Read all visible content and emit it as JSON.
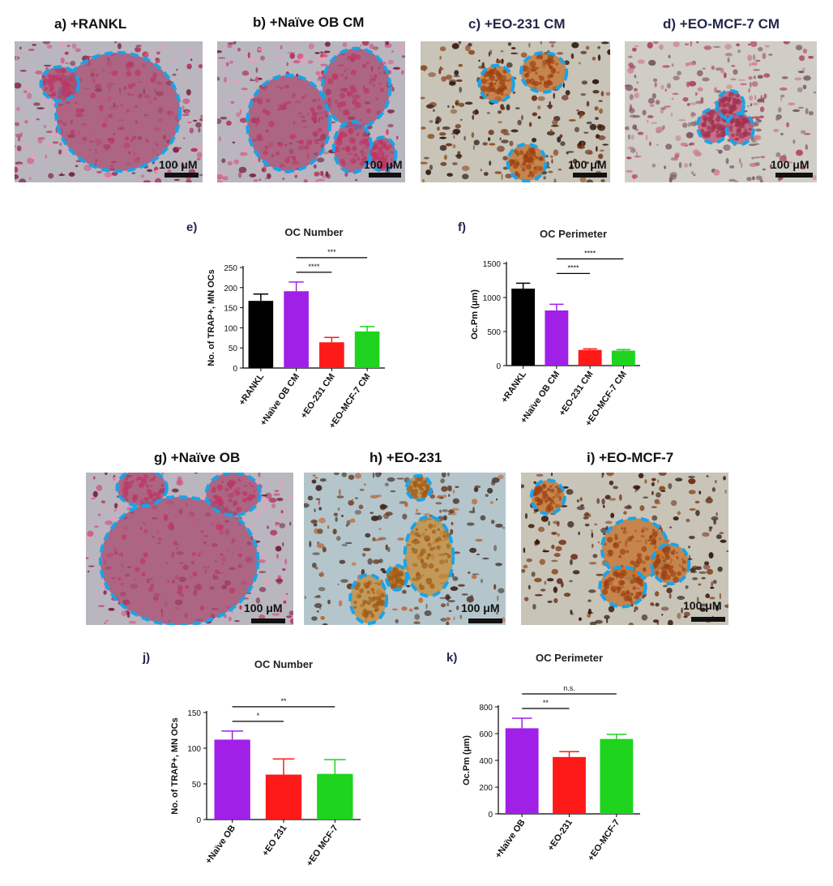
{
  "top_row": [
    {
      "label": "a) +RANKL",
      "scale": "100 μM",
      "tone": "pink"
    },
    {
      "label": "b) +Naïve OB CM",
      "scale": "100 μM",
      "tone": "pink"
    },
    {
      "label": "c) +EO-231 CM",
      "scale": "100 μM",
      "tone": "brown"
    },
    {
      "label": "d) +EO-MCF-7 CM",
      "scale": "100 μM",
      "tone": "grey"
    }
  ],
  "bottom_row": [
    {
      "label": "g) +Naïve OB",
      "scale": "100 μM",
      "tone": "pink"
    },
    {
      "label": "h) +EO-231",
      "scale": "100 μM",
      "tone": "blue"
    },
    {
      "label": "i) +EO-MCF-7",
      "scale": "100 μM",
      "tone": "brown"
    }
  ],
  "colors": {
    "black": "#000000",
    "purple": "#a020e8",
    "red": "#ff1a1a",
    "green": "#1ed41e",
    "outline": "#1aa3e8"
  },
  "chart_data": [
    {
      "panel": "e)",
      "type": "bar",
      "title": "OC Number",
      "ylabel": "No. of TRAP+, MN OCs",
      "categories": [
        "+RANKL",
        "+Naïve OB CM",
        "+EO-231 CM",
        "+EO-MCF-7 CM"
      ],
      "values": [
        167,
        191,
        64,
        91
      ],
      "errors": [
        17,
        23,
        12,
        12
      ],
      "bar_colors": [
        "#000000",
        "#a020e8",
        "#ff1a1a",
        "#1ed41e"
      ],
      "ylim": [
        0,
        250
      ],
      "yticks": [
        0,
        50,
        100,
        150,
        200,
        250
      ],
      "significance": [
        {
          "from": 1,
          "to": 2,
          "label": "****"
        },
        {
          "from": 1,
          "to": 3,
          "label": "***"
        }
      ]
    },
    {
      "panel": "f)",
      "type": "bar",
      "title": "OC Perimeter",
      "ylabel": "Oc.Pm (μm)",
      "categories": [
        "+RANKL",
        "+Naïve OB CM",
        "+EO-231 CM",
        "+EO-MCF-7 CM"
      ],
      "values": [
        1130,
        810,
        230,
        220
      ],
      "errors": [
        80,
        90,
        15,
        15
      ],
      "bar_colors": [
        "#000000",
        "#a020e8",
        "#ff1a1a",
        "#1ed41e"
      ],
      "ylim": [
        0,
        1500
      ],
      "yticks": [
        0,
        500,
        1000,
        1500
      ],
      "significance": [
        {
          "from": 1,
          "to": 2,
          "label": "****"
        },
        {
          "from": 1,
          "to": 3,
          "label": "****"
        }
      ]
    },
    {
      "panel": "j)",
      "type": "bar",
      "title": "OC Number",
      "ylabel": "No. of TRAP+, MN OCs",
      "categories": [
        "+Naïve OB",
        "+EO 231",
        "+EO MCF-7"
      ],
      "values": [
        112,
        63,
        64
      ],
      "errors": [
        12,
        22,
        20
      ],
      "bar_colors": [
        "#a020e8",
        "#ff1a1a",
        "#1ed41e"
      ],
      "ylim": [
        0,
        150
      ],
      "yticks": [
        0,
        50,
        100,
        150
      ],
      "significance": [
        {
          "from": 0,
          "to": 1,
          "label": "*"
        },
        {
          "from": 0,
          "to": 2,
          "label": "**"
        }
      ]
    },
    {
      "panel": "k)",
      "type": "bar",
      "title": "OC Perimeter",
      "ylabel": "Oc.Pm (μm)",
      "categories": [
        "+Naïve OB",
        "+EO-231",
        "+EO-MCF-7"
      ],
      "values": [
        640,
        425,
        560
      ],
      "errors": [
        75,
        40,
        35
      ],
      "bar_colors": [
        "#a020e8",
        "#ff1a1a",
        "#1ed41e"
      ],
      "ylim": [
        0,
        800
      ],
      "yticks": [
        0,
        200,
        400,
        600,
        800
      ],
      "significance": [
        {
          "from": 0,
          "to": 1,
          "label": "**"
        },
        {
          "from": 0,
          "to": 2,
          "label": "n.s."
        }
      ]
    }
  ]
}
